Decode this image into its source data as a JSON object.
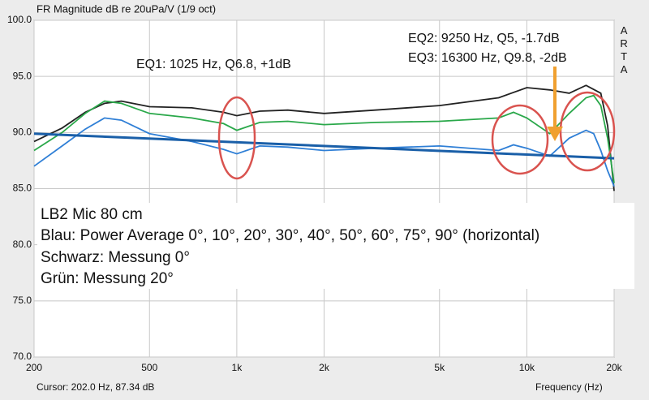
{
  "chart_data": {
    "type": "line",
    "title": "FR Magnitude dB re 20uPa/V (1/9 oct)",
    "brand": "ARTA",
    "cursor": "Cursor: 202.0 Hz, 87.34 dB",
    "x_label": "Frequency (Hz)",
    "x_scale": "log",
    "grid": true,
    "xlim": [
      200,
      20000
    ],
    "xticks": [
      200,
      500,
      {
        "value": 1000,
        "label": "1k"
      },
      {
        "value": 2000,
        "label": "2k"
      },
      {
        "value": 5000,
        "label": "5k"
      },
      {
        "value": 10000,
        "label": "10k"
      },
      {
        "value": 20000,
        "label": "20k"
      }
    ],
    "ylim": [
      70,
      100
    ],
    "yticks": [
      {
        "value": 70,
        "label": "70.0"
      },
      {
        "value": 75,
        "label": "75.0"
      },
      {
        "value": 80,
        "label": "80.0"
      },
      {
        "value": 85,
        "label": "85.0"
      },
      {
        "value": 90,
        "label": "90.0"
      },
      {
        "value": 95,
        "label": "95.0"
      },
      {
        "value": 100,
        "label": "100.0"
      }
    ],
    "annotations": [
      "EQ1: 1025 Hz, Q6.8, +1dB",
      "EQ2: 9250 Hz, Q5, -1.7dB",
      "EQ3: 16300 Hz, Q9.8, -2dB"
    ],
    "notes": [
      "LB2 Mic 80 cm",
      "Blau: Power Average 0°, 10°, 20°, 30°, 40°, 50°, 60°, 75°, 90° (horizontal)",
      "Schwarz: Messung 0°",
      "Grün: Messung 20°"
    ],
    "series": [
      {
        "color": "#222222",
        "x": [
          200,
          250,
          300,
          350,
          400,
          500,
          700,
          900,
          1000,
          1200,
          1500,
          2000,
          3000,
          5000,
          8000,
          10000,
          12000,
          14000,
          16000,
          18000,
          19000,
          20000
        ],
        "values": [
          89.2,
          90.4,
          91.8,
          92.6,
          92.8,
          92.3,
          92.2,
          91.8,
          91.5,
          91.9,
          92.0,
          91.7,
          92.0,
          92.4,
          93.1,
          94.0,
          93.8,
          93.5,
          94.2,
          93.5,
          90.6,
          84.8
        ]
      },
      {
        "color": "#2aa84a",
        "x": [
          200,
          250,
          300,
          350,
          400,
          500,
          700,
          900,
          1000,
          1200,
          1500,
          2000,
          3000,
          5000,
          8000,
          9000,
          10000,
          12000,
          14000,
          16000,
          17000,
          18000,
          19000,
          20000
        ],
        "values": [
          88.4,
          90.0,
          91.7,
          92.8,
          92.6,
          91.7,
          91.3,
          90.8,
          90.2,
          90.9,
          91.0,
          90.7,
          90.9,
          91.0,
          91.3,
          91.8,
          91.3,
          89.9,
          91.7,
          93.1,
          93.3,
          92.4,
          89.5,
          85.5
        ]
      },
      {
        "color": "#2f7fd6",
        "x": [
          200,
          250,
          300,
          350,
          400,
          500,
          700,
          900,
          1000,
          1200,
          1500,
          2000,
          3000,
          5000,
          8000,
          9000,
          10000,
          12000,
          14000,
          16000,
          17000,
          18000,
          19000,
          20000
        ],
        "values": [
          87.0,
          88.8,
          90.3,
          91.3,
          91.1,
          89.9,
          89.2,
          88.5,
          88.1,
          88.8,
          88.7,
          88.4,
          88.6,
          88.8,
          88.4,
          88.9,
          88.6,
          87.9,
          89.5,
          90.2,
          89.9,
          88.4,
          86.6,
          85.2
        ]
      },
      {
        "color": "#1a5fa8",
        "x": [
          200,
          20000
        ],
        "values": [
          89.9,
          87.7
        ]
      }
    ]
  }
}
